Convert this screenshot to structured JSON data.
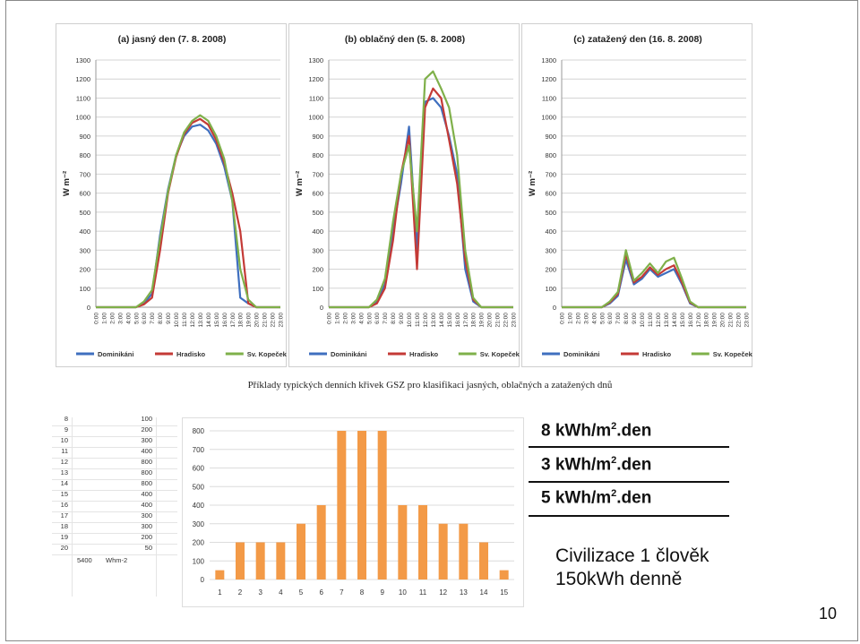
{
  "daily_panels": [
    {
      "title": "(a) jasný den (7. 8. 2008)",
      "ylabel": "W m⁻²",
      "legend": [
        "Dominikáni",
        "Hradisko",
        "Sv. Kopeček"
      ]
    },
    {
      "title": "(b) oblačný den (5. 8. 2008)",
      "ylabel": "W m⁻²",
      "legend": [
        "Dominikáni",
        "Hradisko",
        "Sv. Kopeček"
      ]
    },
    {
      "title": "(c) zatažený den (16. 8. 2008)",
      "ylabel": "W m⁻²",
      "legend": [
        "Dominikáni",
        "Hradisko",
        "Sv. Kopeček"
      ]
    }
  ],
  "series_colors": {
    "Dominikáni": "#3f6fbf",
    "Hradisko": "#c43a36",
    "Sv. Kopeček": "#7fb04a"
  },
  "caption": "Příklady typických denních křivek GSZ pro klasifikaci jasných, oblačných a zatažených dnů",
  "spreadsheet": {
    "rows": [
      {
        "idx": "8",
        "val": "100"
      },
      {
        "idx": "9",
        "val": "200"
      },
      {
        "idx": "10",
        "val": "300"
      },
      {
        "idx": "11",
        "val": "400"
      },
      {
        "idx": "12",
        "val": "800"
      },
      {
        "idx": "13",
        "val": "800"
      },
      {
        "idx": "14",
        "val": "800"
      },
      {
        "idx": "15",
        "val": "400"
      },
      {
        "idx": "16",
        "val": "400"
      },
      {
        "idx": "17",
        "val": "300"
      },
      {
        "idx": "18",
        "val": "300"
      },
      {
        "idx": "19",
        "val": "200"
      },
      {
        "idx": "20",
        "val": "50"
      }
    ],
    "total_value": "5400",
    "total_unit": "Whm-2"
  },
  "energy_labels": [
    {
      "value": "8 kWh/m",
      "sup": "2",
      "suffix": ".den"
    },
    {
      "value": "3 kWh/m",
      "sup": "2",
      "suffix": ".den"
    },
    {
      "value": "5 kWh/m",
      "sup": "2",
      "suffix": ".den"
    }
  ],
  "civilization": {
    "line1": "Civilizace  1 člověk",
    "line2": "150kWh denně"
  },
  "page_number": "10",
  "chart_data": [
    {
      "type": "line",
      "title": "(a) jasný den (7. 8. 2008)",
      "ylabel": "W m⁻²",
      "ylim": [
        0,
        1300
      ],
      "x": [
        "0:00",
        "1:00",
        "2:00",
        "3:00",
        "4:00",
        "5:00",
        "6:00",
        "7:00",
        "8:00",
        "9:00",
        "10:00",
        "11:00",
        "12:00",
        "13:00",
        "14:00",
        "15:00",
        "16:00",
        "17:00",
        "18:00",
        "19:00",
        "20:00",
        "21:00",
        "22:00",
        "23:00"
      ],
      "series": [
        {
          "name": "Dominikáni",
          "values": [
            0,
            0,
            0,
            0,
            0,
            0,
            20,
            70,
            380,
            620,
            800,
            900,
            950,
            960,
            930,
            860,
            740,
            560,
            50,
            20,
            0,
            0,
            0,
            0
          ]
        },
        {
          "name": "Hradisko",
          "values": [
            0,
            0,
            0,
            0,
            0,
            0,
            15,
            50,
            300,
            600,
            790,
            910,
            970,
            990,
            960,
            880,
            760,
            600,
            400,
            20,
            0,
            0,
            0,
            0
          ]
        },
        {
          "name": "Sv. Kopeček",
          "values": [
            0,
            0,
            0,
            0,
            0,
            0,
            30,
            90,
            360,
            610,
            800,
            920,
            980,
            1010,
            980,
            900,
            780,
            560,
            200,
            40,
            0,
            0,
            0,
            0
          ]
        }
      ]
    },
    {
      "type": "line",
      "title": "(b) oblačný den (5. 8. 2008)",
      "ylabel": "W m⁻²",
      "ylim": [
        0,
        1300
      ],
      "x": [
        "0:00",
        "1:00",
        "2:00",
        "3:00",
        "4:00",
        "5:00",
        "6:00",
        "7:00",
        "8:00",
        "9:00",
        "10:00",
        "11:00",
        "12:00",
        "13:00",
        "14:00",
        "15:00",
        "16:00",
        "17:00",
        "18:00",
        "19:00",
        "20:00",
        "21:00",
        "22:00",
        "23:00"
      ],
      "series": [
        {
          "name": "Dominikáni",
          "values": [
            0,
            0,
            0,
            0,
            0,
            0,
            30,
            120,
            400,
            650,
            950,
            300,
            1080,
            1100,
            1050,
            900,
            700,
            200,
            30,
            0,
            0,
            0,
            0,
            0
          ]
        },
        {
          "name": "Hradisko",
          "values": [
            0,
            0,
            0,
            0,
            0,
            0,
            20,
            100,
            350,
            700,
            900,
            200,
            1050,
            1150,
            1100,
            880,
            650,
            250,
            40,
            0,
            0,
            0,
            0,
            0
          ]
        },
        {
          "name": "Sv. Kopeček",
          "values": [
            0,
            0,
            0,
            0,
            0,
            0,
            40,
            150,
            450,
            700,
            850,
            400,
            1200,
            1240,
            1150,
            1050,
            800,
            300,
            50,
            0,
            0,
            0,
            0,
            0
          ]
        }
      ]
    },
    {
      "type": "line",
      "title": "(c) zatažený den (16. 8. 2008)",
      "ylabel": "W m⁻²",
      "ylim": [
        0,
        1300
      ],
      "x": [
        "0:00",
        "1:00",
        "2:00",
        "3:00",
        "4:00",
        "5:00",
        "6:00",
        "7:00",
        "8:00",
        "9:00",
        "10:00",
        "11:00",
        "12:00",
        "13:00",
        "14:00",
        "15:00",
        "16:00",
        "17:00",
        "18:00",
        "19:00",
        "20:00",
        "21:00",
        "22:00",
        "23:00"
      ],
      "series": [
        {
          "name": "Dominikáni",
          "values": [
            0,
            0,
            0,
            0,
            0,
            0,
            20,
            60,
            250,
            120,
            150,
            200,
            160,
            180,
            200,
            120,
            20,
            0,
            0,
            0,
            0,
            0,
            0,
            0
          ]
        },
        {
          "name": "Hradisko",
          "values": [
            0,
            0,
            0,
            0,
            0,
            0,
            25,
            70,
            280,
            130,
            160,
            210,
            170,
            200,
            220,
            130,
            25,
            0,
            0,
            0,
            0,
            0,
            0,
            0
          ]
        },
        {
          "name": "Sv. Kopeček",
          "values": [
            0,
            0,
            0,
            0,
            0,
            0,
            30,
            80,
            300,
            140,
            180,
            230,
            180,
            240,
            260,
            150,
            30,
            0,
            0,
            0,
            0,
            0,
            0,
            0
          ]
        }
      ]
    },
    {
      "type": "bar",
      "categories": [
        "1",
        "2",
        "3",
        "4",
        "5",
        "6",
        "7",
        "8",
        "9",
        "10",
        "11",
        "12",
        "13",
        "14",
        "15"
      ],
      "values": [
        50,
        200,
        200,
        200,
        300,
        400,
        800,
        800,
        800,
        400,
        400,
        300,
        300,
        200,
        50
      ],
      "ylim": [
        0,
        800
      ],
      "color": "#f39a47"
    }
  ]
}
